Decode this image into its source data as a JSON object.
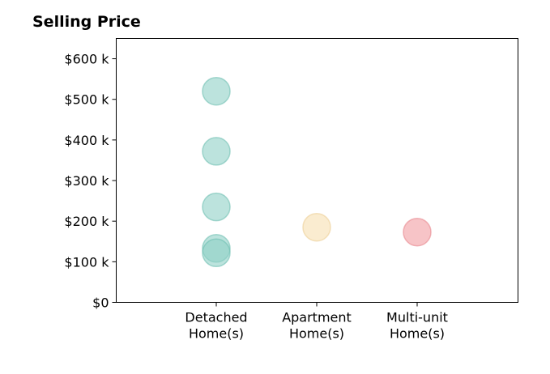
{
  "chart_data": {
    "type": "scatter",
    "title": "Selling Price",
    "xlabel": "",
    "ylabel": "",
    "categories": [
      [
        "Detached",
        "Home(s)"
      ],
      [
        "Apartment",
        "Home(s)"
      ],
      [
        "Multi-unit",
        "Home(s)"
      ]
    ],
    "ylim": [
      0,
      650000
    ],
    "yticks": [
      0,
      100000,
      200000,
      300000,
      400000,
      500000,
      600000
    ],
    "ytick_labels": [
      "$0",
      "$100 k",
      "$200 k",
      "$300 k",
      "$400 k",
      "$500 k",
      "$600 k"
    ],
    "grid": false,
    "points": [
      {
        "category": 0,
        "value": 520000
      },
      {
        "category": 0,
        "value": 372000
      },
      {
        "category": 0,
        "value": 235000
      },
      {
        "category": 0,
        "value": 133000
      },
      {
        "category": 0,
        "value": 122000
      },
      {
        "category": 1,
        "value": 185000
      },
      {
        "category": 2,
        "value": 173000
      }
    ],
    "colors": [
      "#8fd0c6",
      "#f6e0b0",
      "#f29ca2"
    ],
    "edge_colors": [
      "#6fbfb2",
      "#eccf96",
      "#e88890"
    ]
  }
}
